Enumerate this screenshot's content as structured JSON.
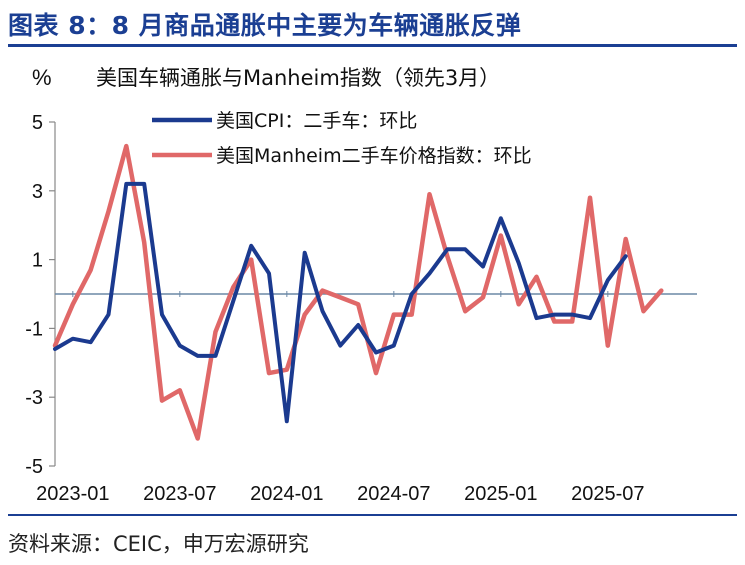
{
  "figure": {
    "title": "图表 8：8 月商品通胀中主要为车辆通胀反弹",
    "source": "资料来源：CEIC，申万宏源研究"
  },
  "colors": {
    "brand": "#1b3f93",
    "series_cpi": "#1b3a8f",
    "series_manheim": "#e06868",
    "zero_line": "#6b88a6",
    "axis": "#888888"
  },
  "chart_data": {
    "type": "line",
    "title": "美国车辆通胀与Manheim指数（领先3月）",
    "ylabel": "%",
    "xlabel": "",
    "ylim": [
      -5,
      5
    ],
    "yticks": [
      5,
      3,
      1,
      -1,
      -3,
      -5
    ],
    "x": [
      "2022-12",
      "2023-01",
      "2023-02",
      "2023-03",
      "2023-04",
      "2023-05",
      "2023-06",
      "2023-07",
      "2023-08",
      "2023-09",
      "2023-10",
      "2023-11",
      "2023-12",
      "2024-01",
      "2024-02",
      "2024-03",
      "2024-04",
      "2024-05",
      "2024-06",
      "2024-07",
      "2024-08",
      "2024-09",
      "2024-10",
      "2024-11",
      "2024-12",
      "2025-01",
      "2025-02",
      "2025-03",
      "2025-04",
      "2025-05",
      "2025-06",
      "2025-07",
      "2025-08",
      "2025-09",
      "2025-10",
      "2025-11",
      "2025-12"
    ],
    "xtick_labels": [
      "2023-01",
      "2023-07",
      "2024-01",
      "2024-07",
      "2025-01",
      "2025-07"
    ],
    "grid": false,
    "legend_position": "top",
    "series": [
      {
        "name": "美国CPI：二手车：环比",
        "color": "#1b3a8f",
        "values": [
          -1.6,
          -1.3,
          -1.4,
          -0.6,
          3.2,
          3.2,
          -0.6,
          -1.5,
          -1.8,
          -1.8,
          -0.2,
          1.4,
          0.6,
          -3.7,
          1.2,
          -0.5,
          -1.5,
          -0.9,
          -1.7,
          -1.5,
          0.0,
          0.6,
          1.3,
          1.3,
          0.8,
          2.2,
          0.9,
          -0.7,
          -0.6,
          -0.6,
          -0.7,
          0.4,
          1.1,
          null,
          null,
          null,
          null
        ]
      },
      {
        "name": "美国Manheim二手车价格指数：环比",
        "color": "#e06868",
        "values": [
          -1.5,
          -0.3,
          0.7,
          2.4,
          4.3,
          1.5,
          -3.1,
          -2.8,
          -4.2,
          -1.1,
          0.2,
          1.0,
          -2.3,
          -2.2,
          -0.6,
          0.1,
          -0.1,
          -0.3,
          -2.3,
          -0.6,
          -0.6,
          2.9,
          1.1,
          -0.5,
          -0.1,
          1.7,
          -0.3,
          0.5,
          -0.8,
          -0.8,
          2.8,
          -1.5,
          1.6,
          -0.5,
          0.1,
          null,
          null
        ]
      }
    ]
  }
}
